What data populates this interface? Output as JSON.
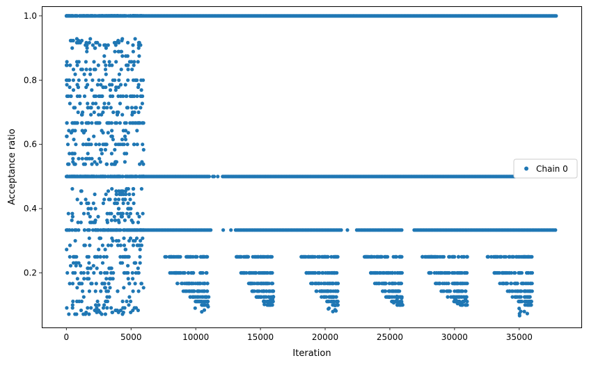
{
  "chart_data": {
    "type": "scatter",
    "xlabel": "Iteration",
    "ylabel": "Acceptance ratio",
    "xlim": [
      -1900,
      39800
    ],
    "ylim": [
      0.03,
      1.03
    ],
    "x_ticks": [
      0,
      5000,
      10000,
      15000,
      20000,
      25000,
      30000,
      35000
    ],
    "x_tick_labels": [
      "0",
      "5000",
      "10000",
      "15000",
      "20000",
      "25000",
      "30000",
      "35000"
    ],
    "y_ticks": [
      0.2,
      0.4,
      0.6,
      0.8,
      1.0
    ],
    "y_tick_labels": [
      "0.2",
      "0.4",
      "0.6",
      "0.8",
      "1.0"
    ],
    "grid": false,
    "legend_position": "center-right",
    "marker": "circle",
    "series": [
      {
        "name": "Chain 0",
        "color": "#1f77b4",
        "summary": {
          "x_range": [
            0,
            37900
          ],
          "burn_in_end": 6000,
          "burn_in_y_range": [
            0.06,
            1.0
          ],
          "post_burn_in_levels": [
            1.0,
            0.5,
            0.333,
            0.25,
            0.2,
            0.167,
            0.143,
            0.125,
            0.111,
            0.1
          ],
          "post_burn_in_clusters": [
            {
              "x": [
                7500,
                11000
              ],
              "y_min": 0.07
            },
            {
              "x": [
                13000,
                16000
              ],
              "y_min": 0.1
            },
            {
              "x": [
                18000,
                21000
              ],
              "y_min": 0.07
            },
            {
              "x": [
                23000,
                26000
              ],
              "y_min": 0.1
            },
            {
              "x": [
                27500,
                31000
              ],
              "y_min": 0.09
            },
            {
              "x": [
                32500,
                36000
              ],
              "y_min": 0.06
            }
          ]
        }
      }
    ]
  }
}
